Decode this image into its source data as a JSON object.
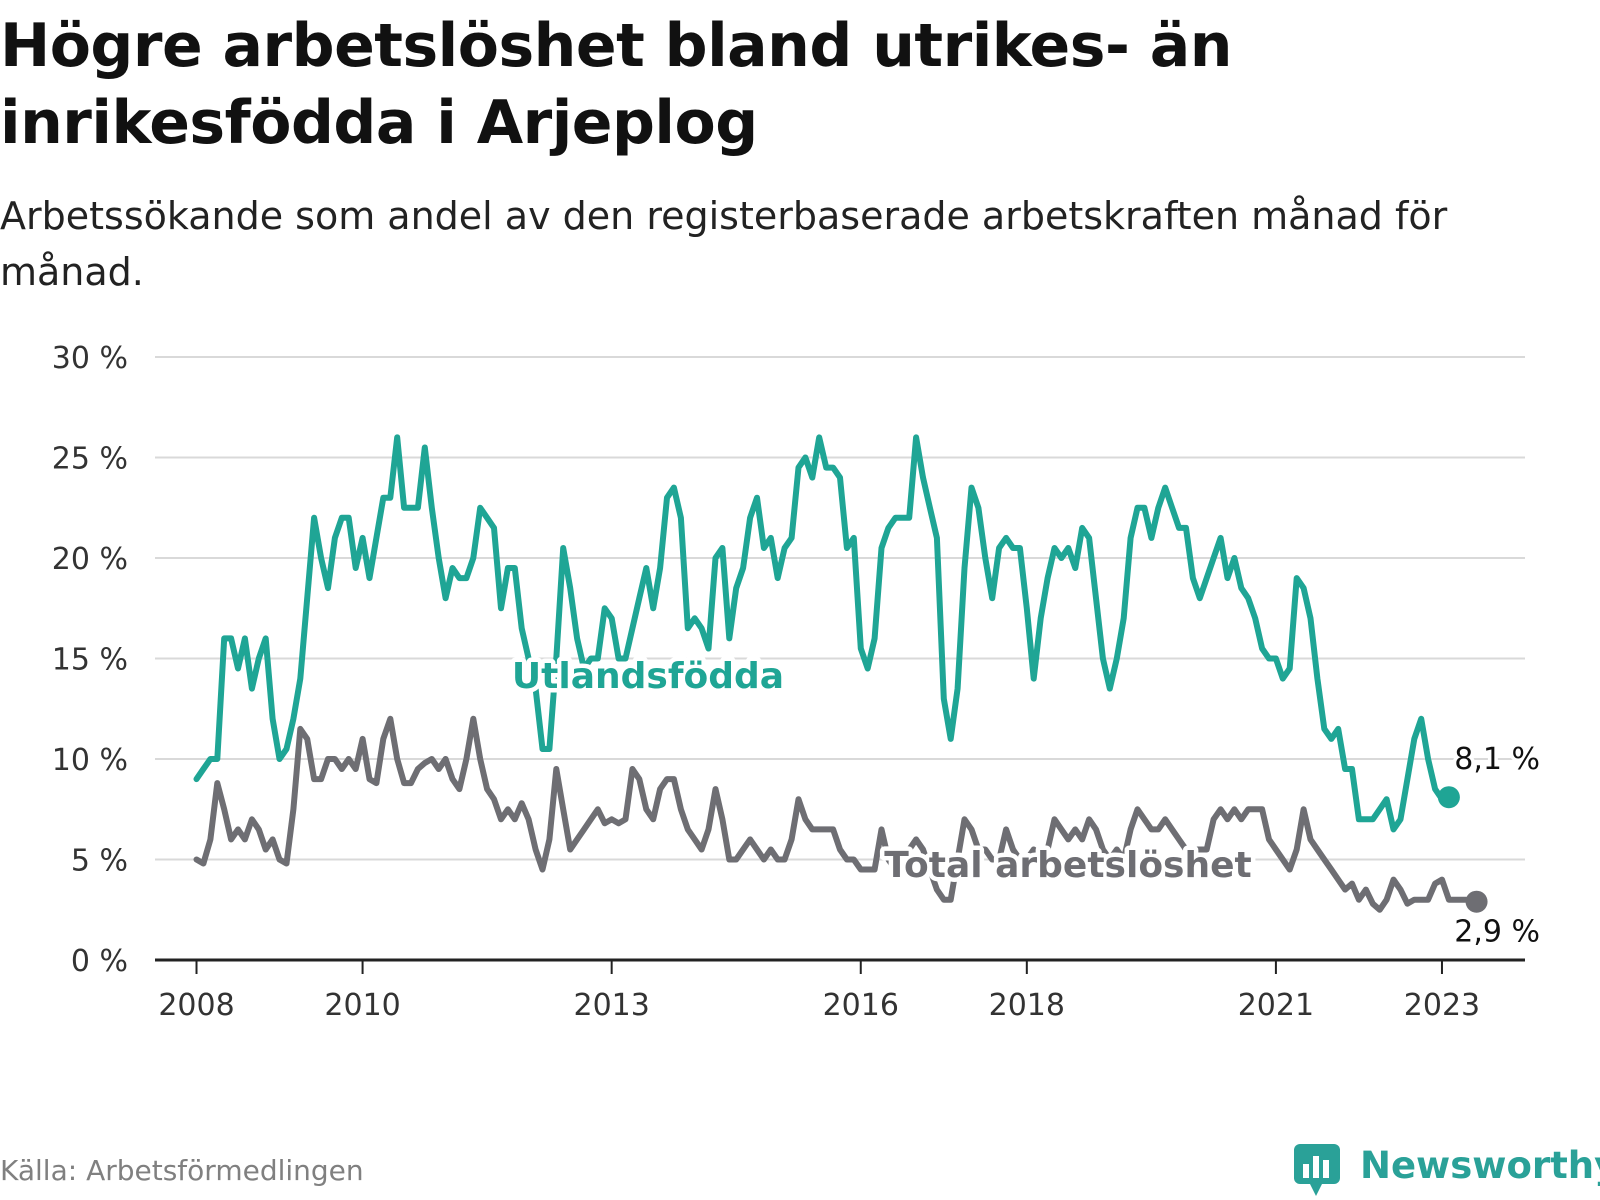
{
  "header": {
    "title": "Högre arbetslöshet bland utrikes- än inrikesfödda i Arjeplog",
    "subtitle": "Arbetssökande som andel av den registerbaserade arbetskraften månad för månad."
  },
  "footer": {
    "source": "Källa: Arbetsförmedlingen",
    "brand": "Newsworthy"
  },
  "colors": {
    "utlandsfodda": "#1fa595",
    "total": "#6e6e73",
    "grid": "#d9d9d9",
    "axis": "#222222",
    "brand": "#2aa198"
  },
  "chart_data": {
    "type": "line",
    "title": "Högre arbetslöshet bland utrikes- än inrikesfödda i Arjeplog",
    "xlabel": "",
    "ylabel": "",
    "x_range": [
      2007.5,
      2024.0
    ],
    "ylim": [
      0,
      30
    ],
    "y_ticks": [
      0,
      5,
      10,
      15,
      20,
      25,
      30
    ],
    "y_tick_labels": [
      "0 %",
      "5 %",
      "10 %",
      "15 %",
      "20 %",
      "25 %",
      "30 %"
    ],
    "x_ticks": [
      2008,
      2010,
      2013,
      2016,
      2018,
      2021,
      2023
    ],
    "x_tick_labels": [
      "2008",
      "2010",
      "2013",
      "2016",
      "2018",
      "2021",
      "2023"
    ],
    "grid": true,
    "series": [
      {
        "name": "Utlandsfödda",
        "key": "utlandsfodda",
        "label": "Utlandsfödda",
        "end_label": "8,1 %",
        "start": 2008.0,
        "step_months": 1,
        "values": [
          9.0,
          9.5,
          10.0,
          10.0,
          16.0,
          16.0,
          14.5,
          16.0,
          13.5,
          15.0,
          16.0,
          12.0,
          10.0,
          10.5,
          12.0,
          14.0,
          18.0,
          22.0,
          20.0,
          18.5,
          21.0,
          22.0,
          22.0,
          19.5,
          21.0,
          19.0,
          21.0,
          23.0,
          23.0,
          26.0,
          22.5,
          22.5,
          22.5,
          25.5,
          22.5,
          20.0,
          18.0,
          19.5,
          19.0,
          19.0,
          20.0,
          22.5,
          22.0,
          21.5,
          17.5,
          19.5,
          19.5,
          16.5,
          15.0,
          13.5,
          10.5,
          10.5,
          15.0,
          20.5,
          18.5,
          16.0,
          14.5,
          15.0,
          15.0,
          17.5,
          17.0,
          15.0,
          15.0,
          16.5,
          18.0,
          19.5,
          17.5,
          19.5,
          23.0,
          23.5,
          22.0,
          16.5,
          17.0,
          16.5,
          15.5,
          20.0,
          20.5,
          16.0,
          18.5,
          19.5,
          22.0,
          23.0,
          20.5,
          21.0,
          19.0,
          20.5,
          21.0,
          24.5,
          25.0,
          24.0,
          26.0,
          24.5,
          24.5,
          24.0,
          20.5,
          21.0,
          15.5,
          14.5,
          16.0,
          20.5,
          21.5,
          22.0,
          22.0,
          22.0,
          26.0,
          24.0,
          22.5,
          21.0,
          13.0,
          11.0,
          13.5,
          19.5,
          23.5,
          22.5,
          20.0,
          18.0,
          20.5,
          21.0,
          20.5,
          20.5,
          17.5,
          14.0,
          17.0,
          19.0,
          20.5,
          20.0,
          20.5,
          19.5,
          21.5,
          21.0,
          18.0,
          15.0,
          13.5,
          15.0,
          17.0,
          21.0,
          22.5,
          22.5,
          21.0,
          22.5,
          23.5,
          22.5,
          21.5,
          21.5,
          19.0,
          18.0,
          19.0,
          20.0,
          21.0,
          19.0,
          20.0,
          18.5,
          18.0,
          17.0,
          15.5,
          15.0,
          15.0,
          14.0,
          14.5,
          19.0,
          18.5,
          17.0,
          14.0,
          11.5,
          11.0,
          11.5,
          9.5,
          9.5,
          7.0,
          7.0,
          7.0,
          7.5,
          8.0,
          6.5,
          7.0,
          9.0,
          11.0,
          12.0,
          10.0,
          8.5,
          8.0,
          8.1
        ]
      },
      {
        "name": "Total arbetslöshet",
        "key": "total",
        "label": "Total arbetslöshet",
        "end_label": "2,9 %",
        "start": 2008.0,
        "step_months": 1,
        "values": [
          5.0,
          4.8,
          6.0,
          8.8,
          7.5,
          6.0,
          6.5,
          6.0,
          7.0,
          6.5,
          5.5,
          6.0,
          5.0,
          4.8,
          7.5,
          11.5,
          11.0,
          9.0,
          9.0,
          10.0,
          10.0,
          9.5,
          10.0,
          9.5,
          11.0,
          9.0,
          8.8,
          11.0,
          12.0,
          10.0,
          8.8,
          8.8,
          9.5,
          9.8,
          10.0,
          9.5,
          10.0,
          9.0,
          8.5,
          10.0,
          12.0,
          10.0,
          8.5,
          8.0,
          7.0,
          7.5,
          7.0,
          7.8,
          7.0,
          5.5,
          4.5,
          6.0,
          9.5,
          7.5,
          5.5,
          6.0,
          6.5,
          7.0,
          7.5,
          6.8,
          7.0,
          6.8,
          7.0,
          9.5,
          9.0,
          7.5,
          7.0,
          8.5,
          9.0,
          9.0,
          7.5,
          6.5,
          6.0,
          5.5,
          6.5,
          8.5,
          7.0,
          5.0,
          5.0,
          5.5,
          6.0,
          5.5,
          5.0,
          5.5,
          5.0,
          5.0,
          6.0,
          8.0,
          7.0,
          6.5,
          6.5,
          6.5,
          6.5,
          5.5,
          5.0,
          5.0,
          4.5,
          4.5,
          4.5,
          6.5,
          5.0,
          4.5,
          5.0,
          5.5,
          6.0,
          5.5,
          4.5,
          3.5,
          3.0,
          3.0,
          5.0,
          7.0,
          6.5,
          5.5,
          5.5,
          5.0,
          5.0,
          6.5,
          5.5,
          5.0,
          5.0,
          5.5,
          5.0,
          5.5,
          7.0,
          6.5,
          6.0,
          6.5,
          6.0,
          7.0,
          6.5,
          5.5,
          5.0,
          5.5,
          5.0,
          6.5,
          7.5,
          7.0,
          6.5,
          6.5,
          7.0,
          6.5,
          6.0,
          5.5,
          5.5,
          5.5,
          5.5,
          7.0,
          7.5,
          7.0,
          7.5,
          7.0,
          7.5,
          7.5,
          7.5,
          6.0,
          5.5,
          5.0,
          4.5,
          5.5,
          7.5,
          6.0,
          5.5,
          5.0,
          4.5,
          4.0,
          3.5,
          3.8,
          3.0,
          3.5,
          2.8,
          2.5,
          3.0,
          4.0,
          3.5,
          2.8,
          3.0,
          3.0,
          3.0,
          3.8,
          4.0,
          3.0,
          3.0,
          3.0,
          3.0,
          2.9
        ]
      }
    ]
  }
}
